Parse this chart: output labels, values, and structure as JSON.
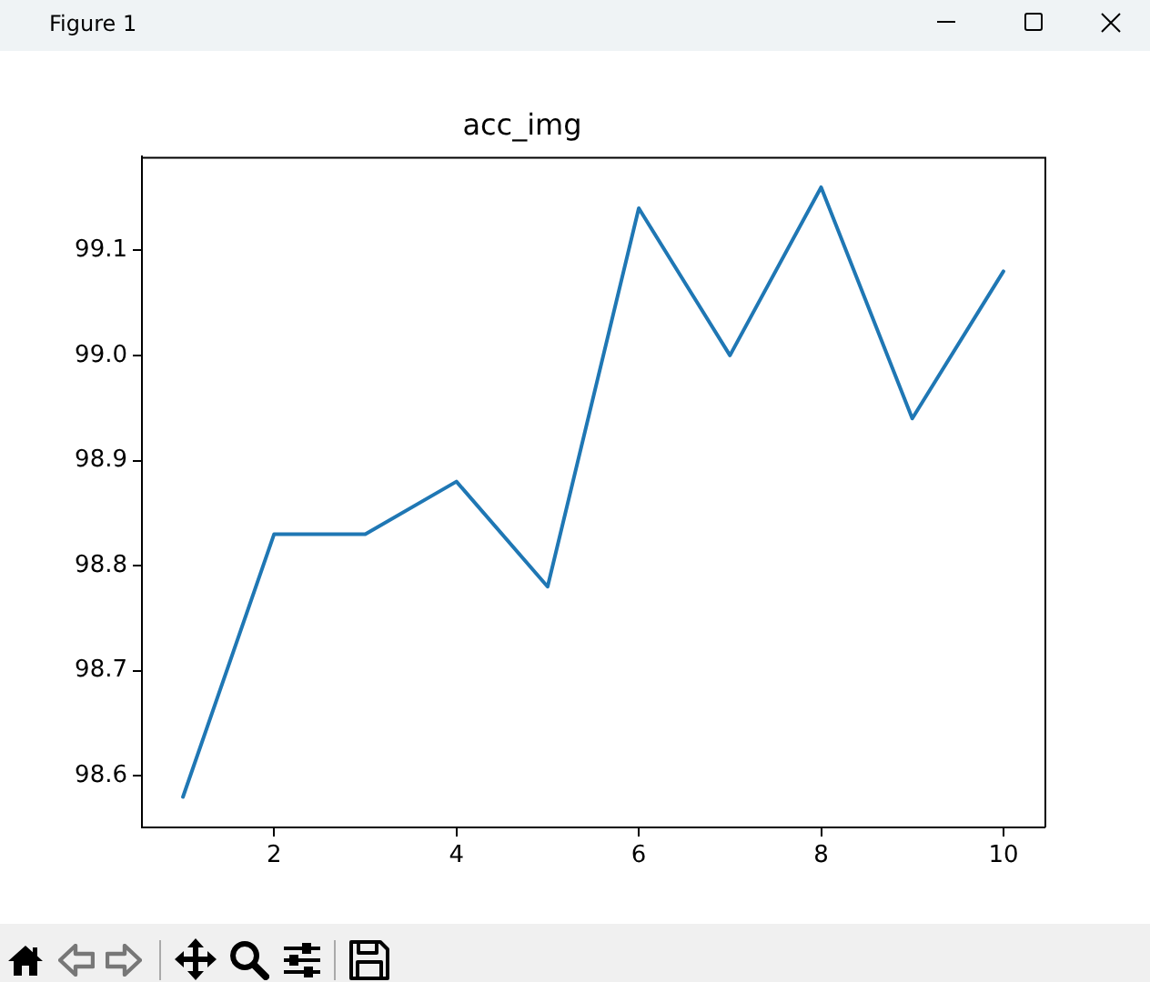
{
  "chart_data": {
    "type": "line",
    "title": "acc_img",
    "x": [
      1,
      2,
      3,
      4,
      5,
      6,
      7,
      8,
      9,
      10
    ],
    "series": [
      {
        "color": "#1f77b4",
        "values": [
          98.58,
          98.83,
          98.83,
          98.88,
          98.78,
          99.14,
          99.0,
          99.16,
          98.94,
          99.08
        ]
      }
    ],
    "xlim": [
      0.55,
      10.45
    ],
    "ylim": [
      98.551,
      99.189
    ],
    "xticks": [
      2,
      4,
      6,
      8,
      10
    ],
    "yticks": [
      98.6,
      98.7,
      98.8,
      98.9,
      {
        "value": 99,
        "label": "99.0"
      },
      99.1
    ],
    "grid": false,
    "legend": false,
    "annotations": [
      "Figure 1"
    ]
  }
}
